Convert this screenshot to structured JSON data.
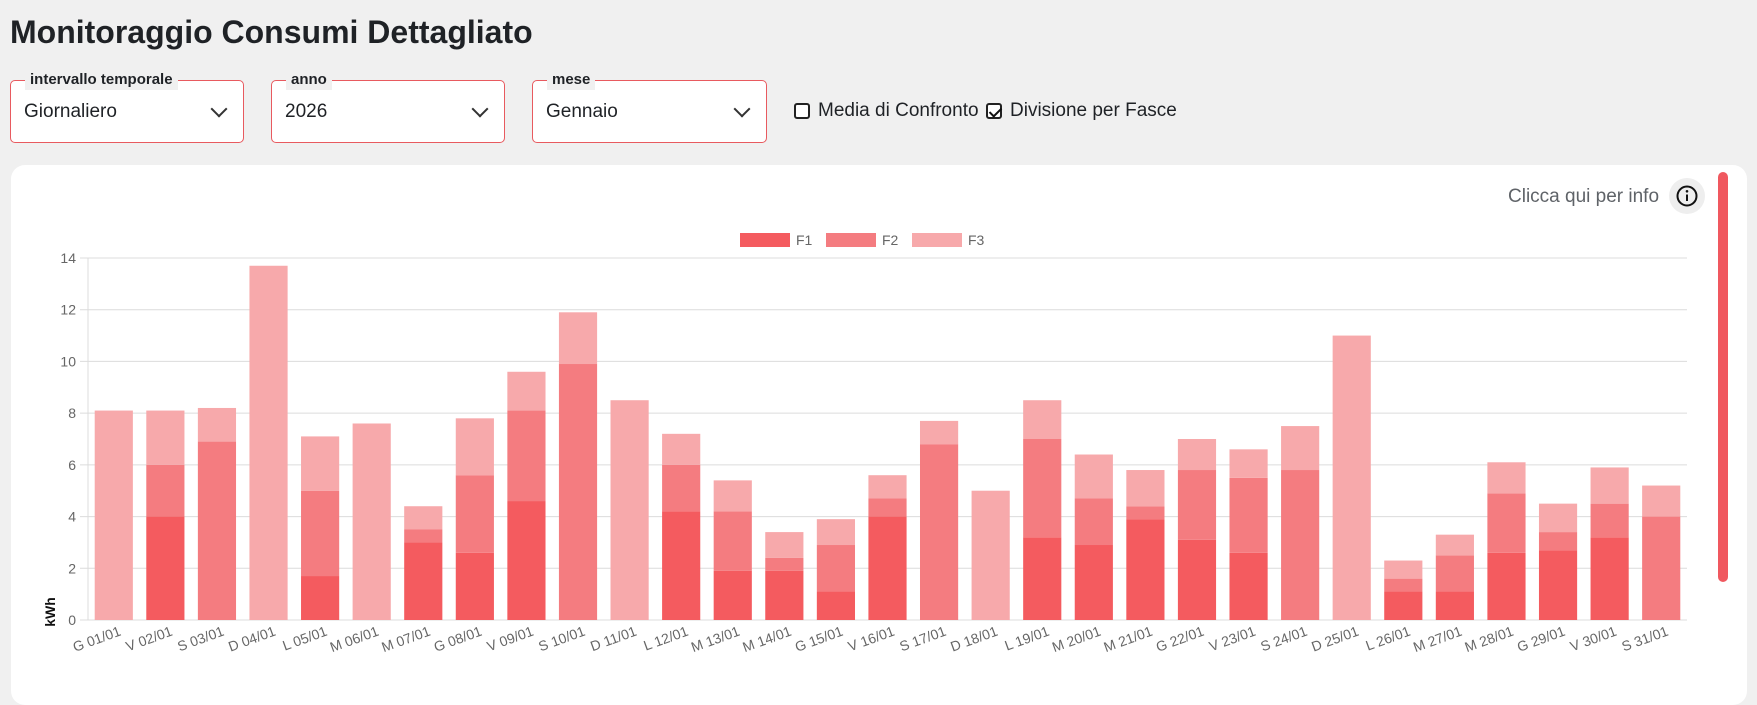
{
  "page": {
    "title": "Monitoraggio Consumi Dettagliato"
  },
  "filters": {
    "interval": {
      "legend": "intervallo temporale",
      "value": "Giornaliero"
    },
    "year": {
      "legend": "anno",
      "value": "2026"
    },
    "month": {
      "legend": "mese",
      "value": "Gennaio"
    }
  },
  "options": {
    "compare_avg": {
      "label": "Media di Confronto",
      "checked": false
    },
    "band_split": {
      "label": "Divisione per Fasce",
      "checked": true
    }
  },
  "info": {
    "label": "Clicca qui per info",
    "icon": "info-icon"
  },
  "colors": {
    "accent": "#e85a5f",
    "F1": "#f45b5f",
    "F2": "#f47c80",
    "F3": "#f7a9ab",
    "scroll": "#f0585f"
  },
  "chart_data": {
    "type": "bar",
    "stacked": true,
    "ylabel": "kWh",
    "ylim": [
      0,
      14
    ],
    "yticks": [
      0,
      2,
      4,
      6,
      8,
      10,
      12,
      14
    ],
    "grid": true,
    "legend_position": "top-center",
    "categories": [
      "G 01/01",
      "V 02/01",
      "S 03/01",
      "D 04/01",
      "L 05/01",
      "M 06/01",
      "M 07/01",
      "G 08/01",
      "V 09/01",
      "S 10/01",
      "D 11/01",
      "L 12/01",
      "M 13/01",
      "M 14/01",
      "G 15/01",
      "V 16/01",
      "S 17/01",
      "D 18/01",
      "L 19/01",
      "M 20/01",
      "M 21/01",
      "G 22/01",
      "V 23/01",
      "S 24/01",
      "D 25/01",
      "L 26/01",
      "M 27/01",
      "M 28/01",
      "G 29/01",
      "V 30/01",
      "S 31/01"
    ],
    "series": [
      {
        "name": "F1",
        "values": [
          0,
          4.0,
          0,
          0,
          1.7,
          0,
          3.0,
          2.6,
          4.6,
          0,
          0,
          4.2,
          1.9,
          1.9,
          1.1,
          4.0,
          0,
          0,
          3.2,
          2.9,
          3.9,
          3.1,
          2.6,
          0,
          0,
          1.1,
          1.1,
          2.6,
          2.7,
          3.2,
          0
        ]
      },
      {
        "name": "F2",
        "values": [
          0,
          2.0,
          6.9,
          0,
          3.3,
          0,
          0.5,
          3.0,
          3.5,
          9.9,
          0,
          1.8,
          2.3,
          0.5,
          1.8,
          0.7,
          6.8,
          0,
          3.8,
          1.8,
          0.5,
          2.7,
          2.9,
          5.8,
          0,
          0.5,
          1.4,
          2.3,
          0.7,
          1.3,
          4.0
        ]
      },
      {
        "name": "F3",
        "values": [
          8.1,
          2.1,
          1.3,
          13.7,
          2.1,
          7.6,
          0.9,
          2.2,
          1.5,
          2.0,
          8.5,
          1.2,
          1.2,
          1.0,
          1.0,
          0.9,
          0.9,
          5.0,
          1.5,
          1.7,
          1.4,
          1.2,
          1.1,
          1.7,
          11.0,
          0.7,
          0.8,
          1.2,
          1.1,
          1.4,
          1.2
        ]
      }
    ]
  }
}
